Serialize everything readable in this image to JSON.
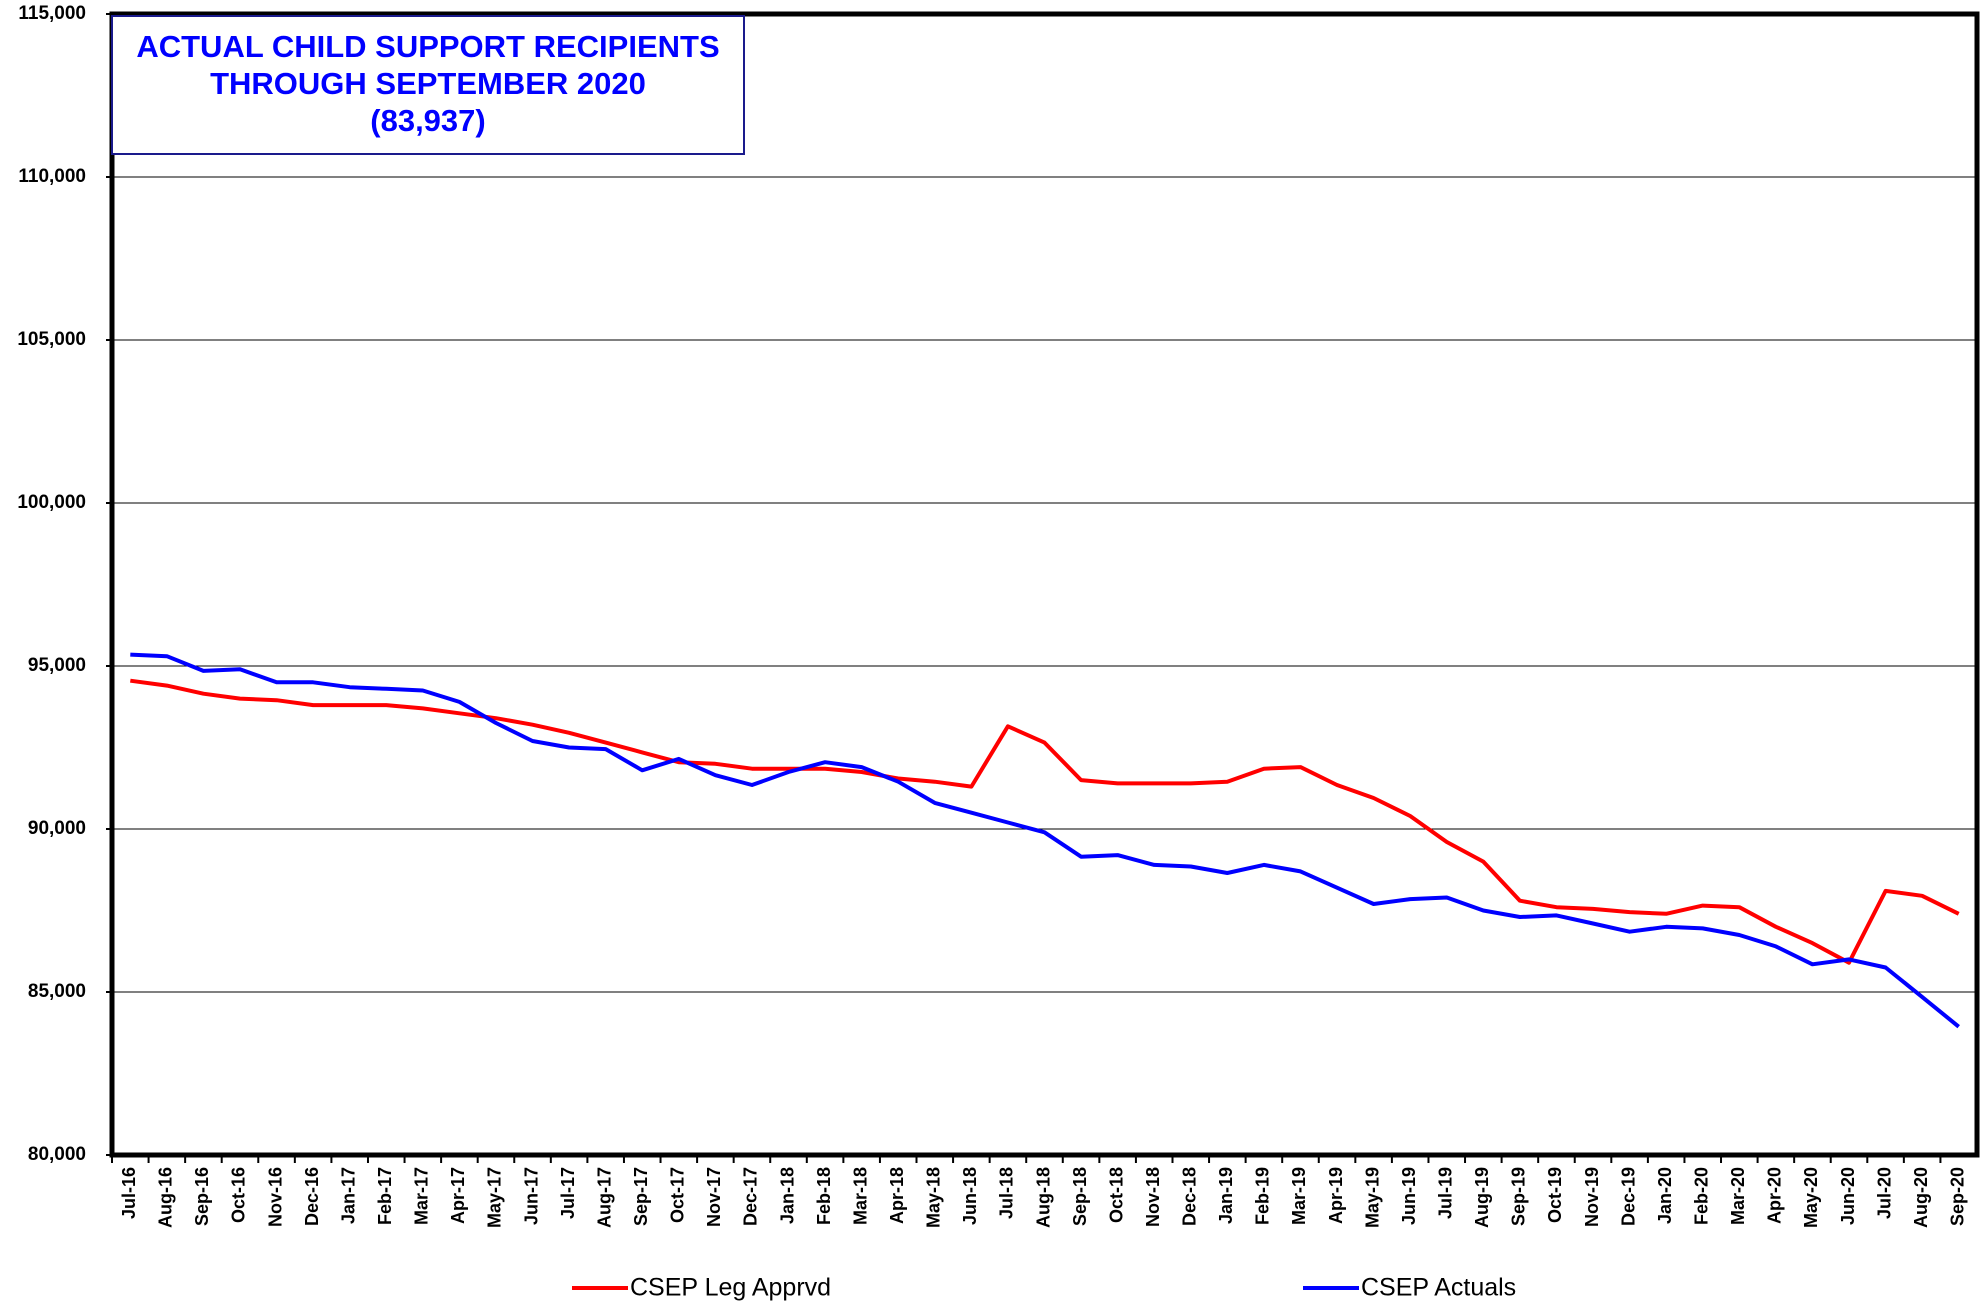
{
  "chart_data": {
    "type": "line",
    "title": [
      "ACTUAL CHILD SUPPORT RECIPIENTS",
      "THROUGH SEPTEMBER 2020",
      "(83,937)"
    ],
    "categories": [
      "Jul-16",
      "Aug-16",
      "Sep-16",
      "Oct-16",
      "Nov-16",
      "Dec-16",
      "Jan-17",
      "Feb-17",
      "Mar-17",
      "Apr-17",
      "May-17",
      "Jun-17",
      "Jul-17",
      "Aug-17",
      "Sep-17",
      "Oct-17",
      "Nov-17",
      "Dec-17",
      "Jan-18",
      "Feb-18",
      "Mar-18",
      "Apr-18",
      "May-18",
      "Jun-18",
      "Jul-18",
      "Aug-18",
      "Sep-18",
      "Oct-18",
      "Nov-18",
      "Dec-18",
      "Jan-19",
      "Feb-19",
      "Mar-19",
      "Apr-19",
      "May-19",
      "Jun-19",
      "Jul-19",
      "Aug-19",
      "Sep-19",
      "Oct-19",
      "Nov-19",
      "Dec-19",
      "Jan-20",
      "Feb-20",
      "Mar-20",
      "Apr-20",
      "May-20",
      "Jun-20",
      "Jul-20",
      "Aug-20",
      "Sep-20"
    ],
    "series": [
      {
        "name": "CSEP Leg Apprvd",
        "color": "#ff0000",
        "values": [
          94550,
          94400,
          94150,
          94000,
          93950,
          93800,
          93800,
          93800,
          93700,
          93550,
          93400,
          93200,
          92950,
          92650,
          92350,
          92050,
          92000,
          91850,
          91850,
          91850,
          91750,
          91550,
          91450,
          91300,
          93150,
          92650,
          91500,
          91400,
          91400,
          91400,
          91450,
          91850,
          91900,
          91350,
          90950,
          90400,
          89600,
          89000,
          87800,
          87600,
          87550,
          87450,
          87400,
          87650,
          87600,
          87000,
          86500,
          85900,
          88100,
          87950,
          87400
        ]
      },
      {
        "name": "CSEP Actuals",
        "color": "#0000ff",
        "values": [
          95350,
          95300,
          94850,
          94900,
          94500,
          94500,
          94350,
          94300,
          94250,
          93900,
          93250,
          92700,
          92500,
          92450,
          91800,
          92150,
          91650,
          91350,
          91750,
          92050,
          91900,
          91450,
          90800,
          90500,
          90200,
          89900,
          89150,
          89200,
          88900,
          88850,
          88650,
          88900,
          88700,
          88200,
          87700,
          87850,
          87900,
          87500,
          87300,
          87350,
          87100,
          86850,
          87000,
          86950,
          86750,
          86400,
          85850,
          86000,
          85750,
          84850,
          83937
        ]
      }
    ],
    "ylim": [
      80000,
      115000
    ],
    "yticks": [
      {
        "value": 80000,
        "label": "80,000"
      },
      {
        "value": 85000,
        "label": "85,000"
      },
      {
        "value": 90000,
        "label": "90,000"
      },
      {
        "value": 95000,
        "label": "95,000"
      },
      {
        "value": 100000,
        "label": "100,000"
      },
      {
        "value": 105000,
        "label": "105,000"
      },
      {
        "value": 110000,
        "label": "110,000"
      },
      {
        "value": 115000,
        "label": "115,000"
      }
    ],
    "grid": true
  }
}
